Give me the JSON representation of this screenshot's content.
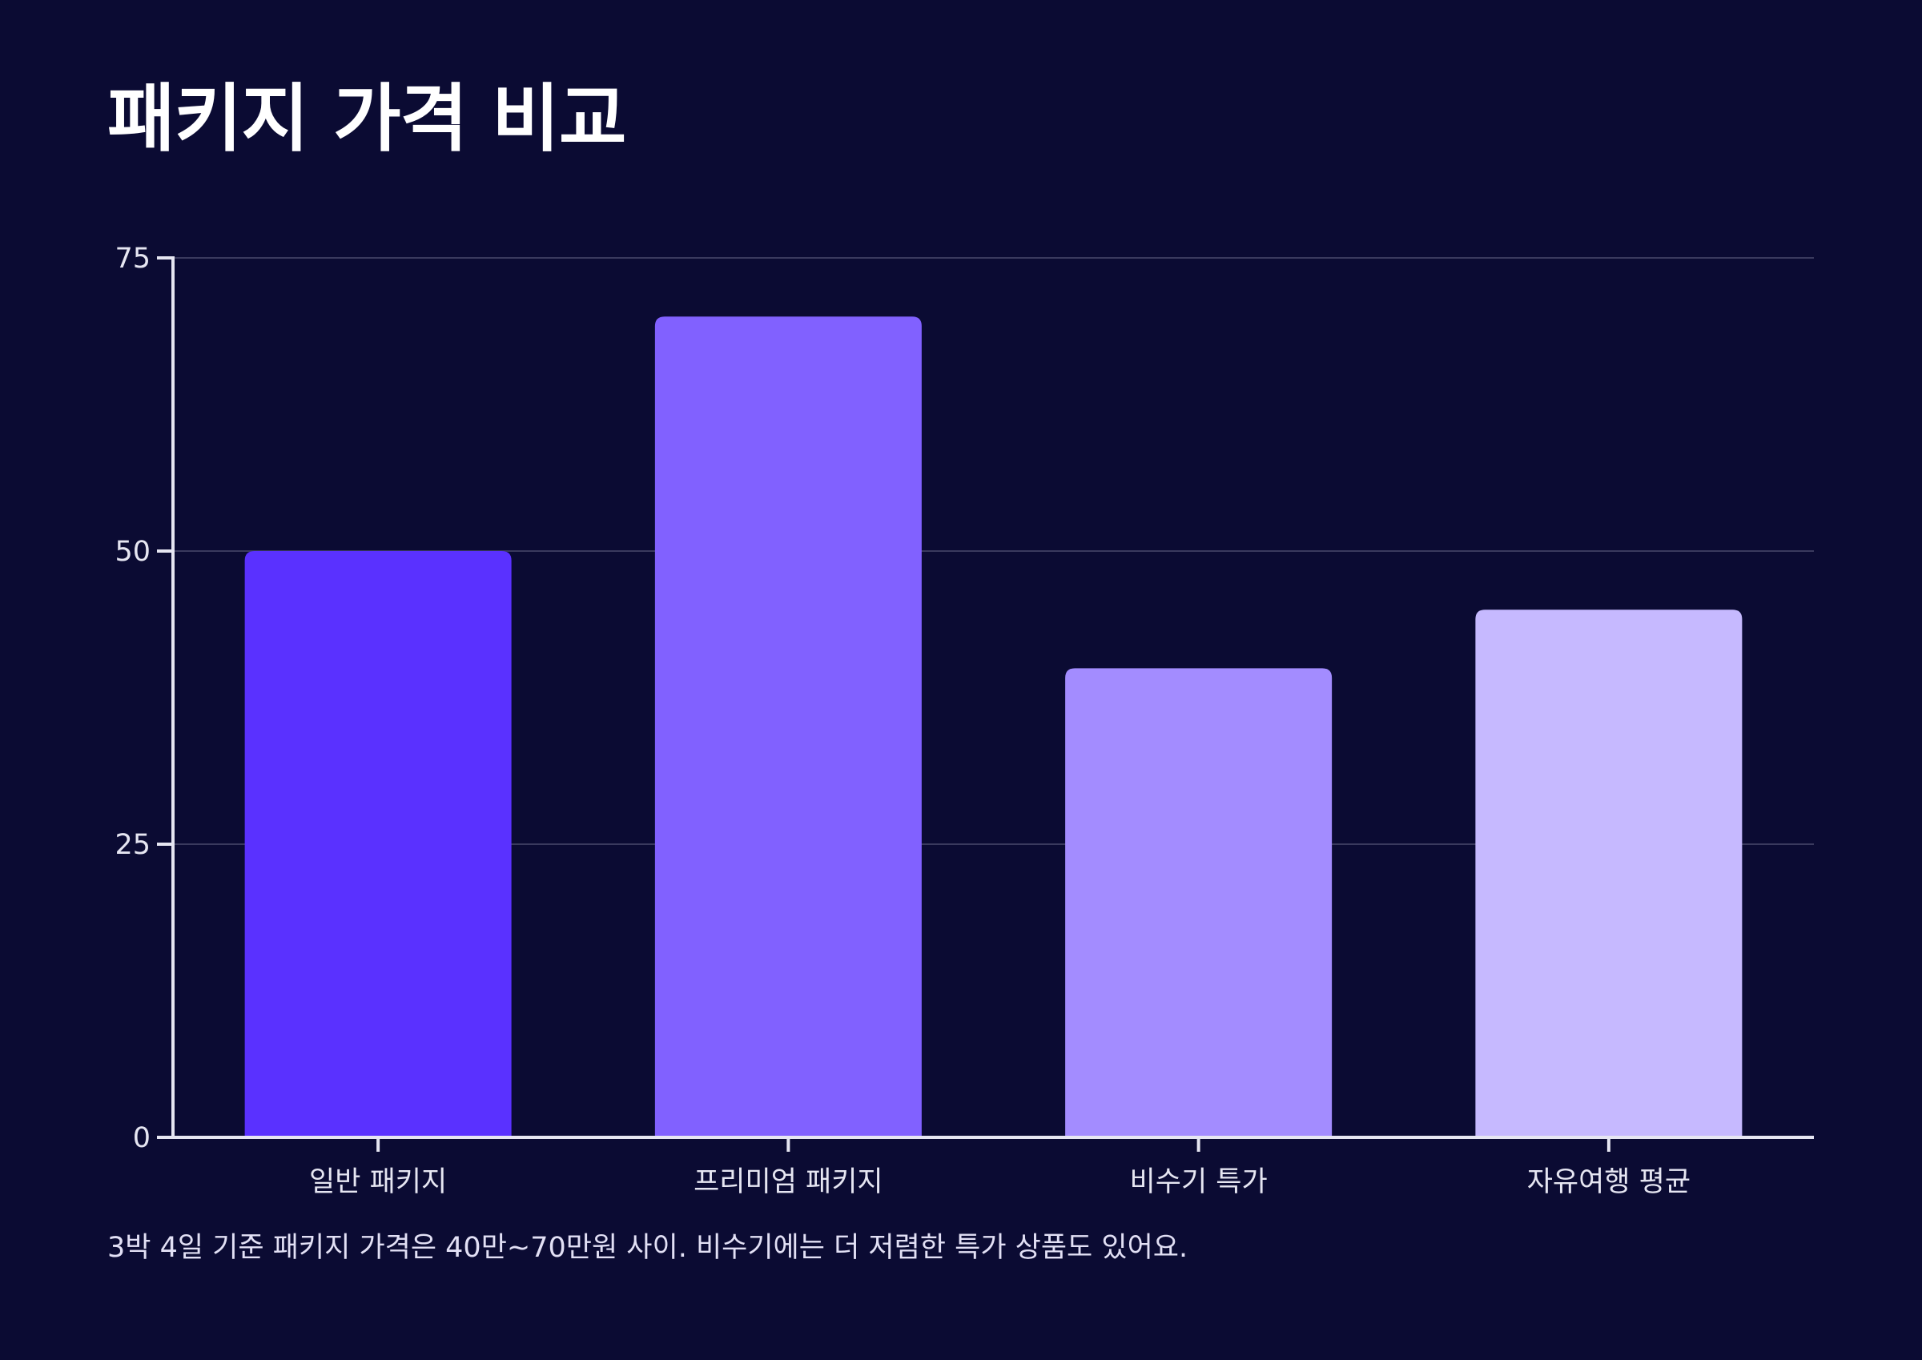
{
  "chart_data": {
    "type": "bar",
    "title": "패키지 가격 비교",
    "caption": "3박 4일 기준 패키지 가격은 40만~70만원 사이. 비수기에는 더 저렴한 특가 상품도 있어요.",
    "categories": [
      "일반 패키지",
      "프리미엄 패키지",
      "비수기 특가",
      "자유여행 평균"
    ],
    "values": [
      50,
      70,
      40,
      45
    ],
    "colors": [
      "#5a31ff",
      "#8161ff",
      "#a38cff",
      "#c6b9ff"
    ],
    "xlabel": "",
    "ylabel": "",
    "ylim": [
      0,
      75
    ],
    "yticks": [
      0,
      25,
      50,
      75
    ],
    "grid": true,
    "legend": "none"
  },
  "colors": {
    "background": "#0b0b33",
    "axis": "#e6e6f2",
    "grid": "#3a3a5e",
    "text": "#ffffff"
  }
}
